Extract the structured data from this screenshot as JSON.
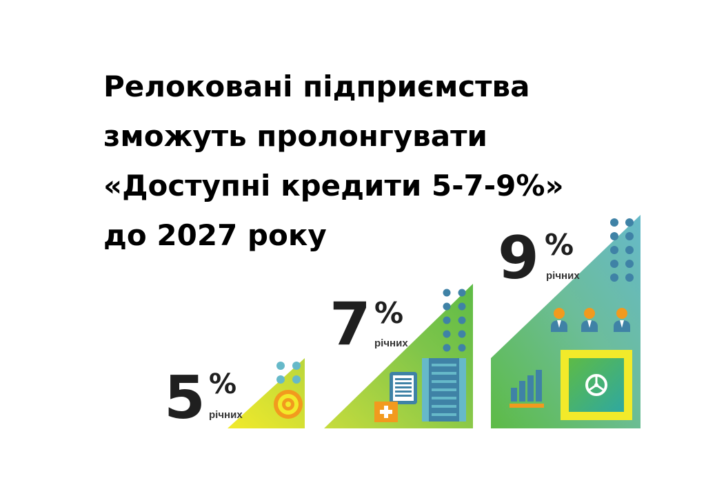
{
  "headline": {
    "line1": "Релоковані підприємства",
    "line2": "зможуть пролонгувати",
    "line3": "«Доступні кредити 5-7-9%»",
    "line4": "до 2027 року"
  },
  "tiers": [
    {
      "number": "5",
      "percent": "%",
      "label": "річних"
    },
    {
      "number": "7",
      "percent": "%",
      "label": "річних"
    },
    {
      "number": "9",
      "percent": "%",
      "label": "річних"
    }
  ],
  "colors": {
    "green": "#5dbb46",
    "lime": "#c7dc3c",
    "yellow": "#f2ea2a",
    "teal": "#66b9c9",
    "dot_blue": "#3f82a6",
    "orange": "#f29a1e",
    "dark": "#1f1f1f"
  },
  "icons": [
    "target-icon",
    "document-icon",
    "plus-icon",
    "coin-stack-icon",
    "bar-chart-icon",
    "people-icon",
    "safe-icon"
  ]
}
